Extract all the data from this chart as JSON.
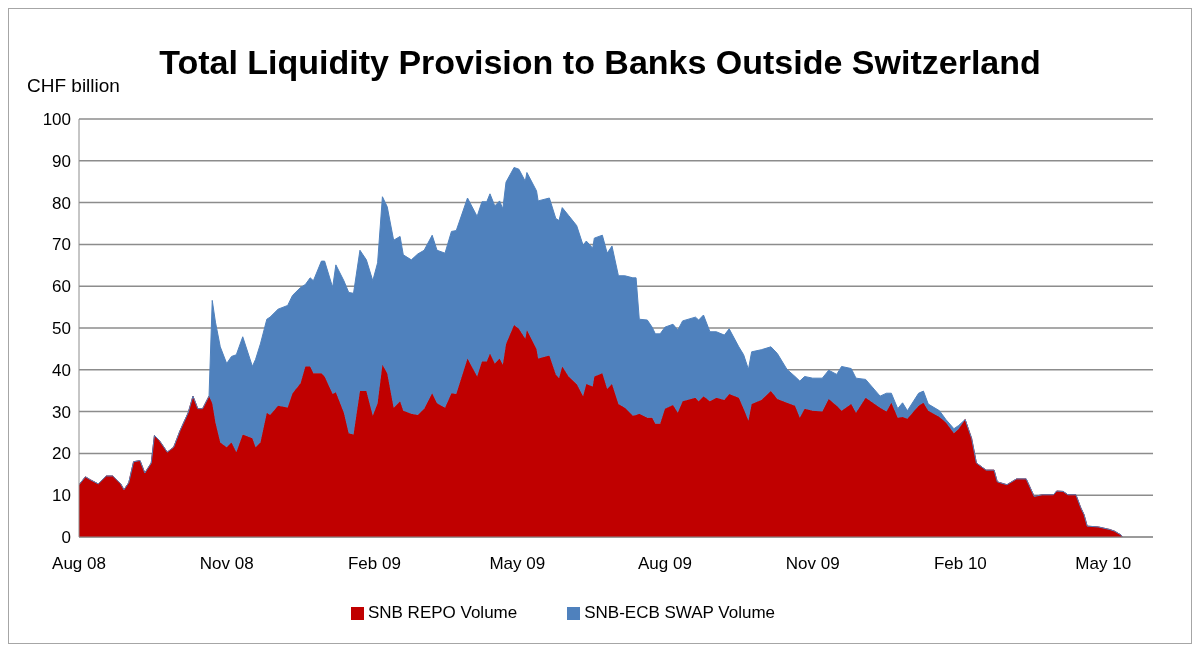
{
  "chart_data": {
    "type": "area",
    "stacked": true,
    "title": "Total Liquidity Provision to Banks Outside Switzerland",
    "ylabel": "CHF billion",
    "ylim": [
      0,
      100
    ],
    "yticks": [
      0,
      10,
      20,
      30,
      40,
      50,
      60,
      70,
      80,
      90,
      100
    ],
    "xlim": [
      "2008-08-01",
      "2010-06-01"
    ],
    "xticks": [
      {
        "value": "2008-08-01",
        "label": "Aug 08"
      },
      {
        "value": "2008-11-01",
        "label": "Nov 08"
      },
      {
        "value": "2009-02-01",
        "label": "Feb 09"
      },
      {
        "value": "2009-05-01",
        "label": "May 09"
      },
      {
        "value": "2009-08-01",
        "label": "Aug 09"
      },
      {
        "value": "2009-11-01",
        "label": "Nov 09"
      },
      {
        "value": "2010-02-01",
        "label": "Feb 10"
      },
      {
        "value": "2010-05-01",
        "label": "May 10"
      }
    ],
    "grid": "y",
    "legend": "bottom",
    "x": [
      "2008-08-01",
      "2008-08-05",
      "2008-08-08",
      "2008-08-13",
      "2008-08-18",
      "2008-08-22",
      "2008-08-27",
      "2008-08-29",
      "2008-09-01",
      "2008-09-04",
      "2008-09-08",
      "2008-09-11",
      "2008-09-15",
      "2008-09-17",
      "2008-09-20",
      "2008-09-25",
      "2008-09-29",
      "2008-10-03",
      "2008-10-08",
      "2008-10-11",
      "2008-10-14",
      "2008-10-17",
      "2008-10-21",
      "2008-10-23",
      "2008-10-25",
      "2008-10-28",
      "2008-11-01",
      "2008-11-04",
      "2008-11-07",
      "2008-11-11",
      "2008-11-17",
      "2008-11-19",
      "2008-11-22",
      "2008-11-26",
      "2008-11-28",
      "2008-12-03",
      "2008-12-09",
      "2008-12-12",
      "2008-12-17",
      "2008-12-20",
      "2008-12-23",
      "2008-12-25",
      "2008-12-30",
      "2009-01-01",
      "2009-01-06",
      "2009-01-08",
      "2009-01-13",
      "2009-01-16",
      "2009-01-19",
      "2009-01-23",
      "2009-01-27",
      "2009-01-31",
      "2009-02-03",
      "2009-02-06",
      "2009-02-09",
      "2009-02-13",
      "2009-02-17",
      "2009-02-19",
      "2009-02-24",
      "2009-02-28",
      "2009-03-04",
      "2009-03-09",
      "2009-03-12",
      "2009-03-17",
      "2009-03-21",
      "2009-03-24",
      "2009-03-31",
      "2009-04-06",
      "2009-04-09",
      "2009-04-12",
      "2009-04-14",
      "2009-04-17",
      "2009-04-20",
      "2009-04-22",
      "2009-04-24",
      "2009-04-29",
      "2009-05-02",
      "2009-05-06",
      "2009-05-07",
      "2009-05-13",
      "2009-05-14",
      "2009-05-21",
      "2009-05-25",
      "2009-05-27",
      "2009-05-29",
      "2009-06-02",
      "2009-06-07",
      "2009-06-11",
      "2009-06-13",
      "2009-06-17",
      "2009-06-18",
      "2009-06-23",
      "2009-06-26",
      "2009-06-29",
      "2009-07-03",
      "2009-07-07",
      "2009-07-12",
      "2009-07-14",
      "2009-07-16",
      "2009-07-21",
      "2009-07-24",
      "2009-07-26",
      "2009-07-29",
      "2009-08-01",
      "2009-08-06",
      "2009-08-09",
      "2009-08-12",
      "2009-08-20",
      "2009-08-22",
      "2009-08-25",
      "2009-08-29",
      "2009-09-02",
      "2009-09-07",
      "2009-09-10",
      "2009-09-16",
      "2009-09-19",
      "2009-09-22",
      "2009-09-24",
      "2009-09-30",
      "2009-10-06",
      "2009-10-10",
      "2009-10-16",
      "2009-10-21",
      "2009-10-24",
      "2009-10-27",
      "2009-11-01",
      "2009-11-07",
      "2009-11-11",
      "2009-11-16",
      "2009-11-19",
      "2009-11-25",
      "2009-11-28",
      "2009-12-04",
      "2009-12-13",
      "2009-12-17",
      "2009-12-20",
      "2009-12-24",
      "2009-12-27",
      "2009-12-30",
      "2010-01-06",
      "2010-01-09",
      "2010-01-12",
      "2010-01-19",
      "2010-01-23",
      "2010-01-28",
      "2010-01-31",
      "2010-02-04",
      "2010-02-08",
      "2010-02-11",
      "2010-02-17",
      "2010-02-22",
      "2010-02-24",
      "2010-03-02",
      "2010-03-08",
      "2010-03-14",
      "2010-03-19",
      "2010-03-24",
      "2010-03-31",
      "2010-04-02",
      "2010-04-06",
      "2010-04-09",
      "2010-04-14",
      "2010-04-17",
      "2010-04-19",
      "2010-04-21",
      "2010-04-28",
      "2010-05-05",
      "2010-05-08",
      "2010-05-12",
      "2010-05-13"
    ],
    "series": [
      {
        "name": "SNB REPO Volume",
        "color": "#c00000",
        "values": [
          12.5,
          14.4,
          13.7,
          12.7,
          14.6,
          14.6,
          12.7,
          11.3,
          13.0,
          18.0,
          18.3,
          15.3,
          17.7,
          24.3,
          23.1,
          20.3,
          21.5,
          25.5,
          29.7,
          33.7,
          30.7,
          30.7,
          33.7,
          32.0,
          27.4,
          22.6,
          21.5,
          22.6,
          20.3,
          24.5,
          23.6,
          21.5,
          22.6,
          29.7,
          29.2,
          31.4,
          31.0,
          34.4,
          36.8,
          40.8,
          40.8,
          39.2,
          39.2,
          38.4,
          34.2,
          34.6,
          29.7,
          24.8,
          24.5,
          34.9,
          34.9,
          29.0,
          32.0,
          41.2,
          39.2,
          30.9,
          32.5,
          30.2,
          29.5,
          29.2,
          30.7,
          34.4,
          32.0,
          30.9,
          34.4,
          34.2,
          42.7,
          38.4,
          42.0,
          42.0,
          43.9,
          41.5,
          42.7,
          41.2,
          46.2,
          50.7,
          49.8,
          47.4,
          49.5,
          45.0,
          42.7,
          43.4,
          38.9,
          38.0,
          40.8,
          38.4,
          36.6,
          33.7,
          36.6,
          36.0,
          38.4,
          39.2,
          35.4,
          36.6,
          31.8,
          30.9,
          29.0,
          29.2,
          29.5,
          28.5,
          28.5,
          27.1,
          27.1,
          30.7,
          31.6,
          29.7,
          32.5,
          33.3,
          32.5,
          33.7,
          32.5,
          33.3,
          32.8,
          34.2,
          33.3,
          30.7,
          27.8,
          31.8,
          32.8,
          34.9,
          33.0,
          32.1,
          31.4,
          28.5,
          30.7,
          30.2,
          30.0,
          33.0,
          31.4,
          30.2,
          31.8,
          29.7,
          33.3,
          30.9,
          30.0,
          32.1,
          28.5,
          28.7,
          28.3,
          31.4,
          32.1,
          30.2,
          28.7,
          27.4,
          24.8,
          25.9,
          28.1,
          23.6,
          17.7,
          16.0,
          16.0,
          13.2,
          12.5,
          13.9,
          13.9,
          9.7,
          10.1,
          10.1,
          11.0,
          10.9,
          10.1,
          10.1,
          7.0,
          5.4,
          2.6,
          2.4,
          1.8,
          1.4,
          0.5,
          0
        ]
      },
      {
        "name": "SNB-ECB SWAP Volume",
        "color": "#4f81bd",
        "values": [
          0,
          0,
          0,
          0,
          0,
          0,
          0,
          0,
          0,
          0,
          0,
          0,
          0,
          0,
          0,
          0,
          0,
          0,
          0,
          0,
          0,
          0,
          0,
          24.6,
          24.0,
          22.9,
          20.0,
          20.6,
          23.3,
          23.4,
          17.2,
          21.0,
          23.6,
          22.4,
          23.4,
          23.1,
          24.4,
          23.4,
          22.9,
          19.6,
          21.2,
          22.1,
          26.8,
          27.6,
          25.5,
          30.5,
          31.6,
          33.7,
          33.8,
          33.7,
          31.4,
          32.3,
          33.6,
          40.2,
          39.8,
          40.1,
          39.4,
          37.3,
          36.8,
          38.5,
          37.9,
          37.8,
          36.6,
          37.0,
          38.7,
          39.1,
          38.4,
          38.3,
          38.2,
          38.2,
          38.2,
          37.7,
          37.7,
          37.3,
          38.7,
          37.7,
          38.2,
          37.7,
          37.7,
          37.8,
          37.7,
          37.7,
          37.3,
          37.7,
          38.0,
          38.5,
          37.9,
          36.1,
          34.2,
          33.1,
          33.1,
          33.0,
          32.5,
          33.0,
          30.7,
          31.6,
          33.0,
          32.8,
          22.6,
          23.4,
          21.7,
          21.5,
          21.5,
          19.5,
          19.3,
          19.8,
          19.2,
          19.3,
          19.4,
          19.4,
          16.6,
          15.8,
          15.5,
          15.6,
          12.2,
          12.9,
          12.3,
          12.5,
          12.0,
          10.6,
          10.9,
          8.0,
          7.0,
          8.8,
          7.7,
          7.8,
          8.0,
          6.9,
          7.5,
          10.6,
          8.5,
          8.3,
          4.4,
          2.8,
          4.4,
          2.3,
          2.2,
          3.4,
          1.9,
          3.0,
          2.8,
          1.6,
          1.5,
          0.7,
          1.1,
          0.8,
          0,
          0,
          0,
          0,
          0,
          0,
          0,
          0,
          0,
          0,
          0,
          0,
          0,
          0,
          0,
          0,
          0,
          0,
          0,
          0,
          0,
          0,
          0,
          0
        ]
      }
    ]
  }
}
